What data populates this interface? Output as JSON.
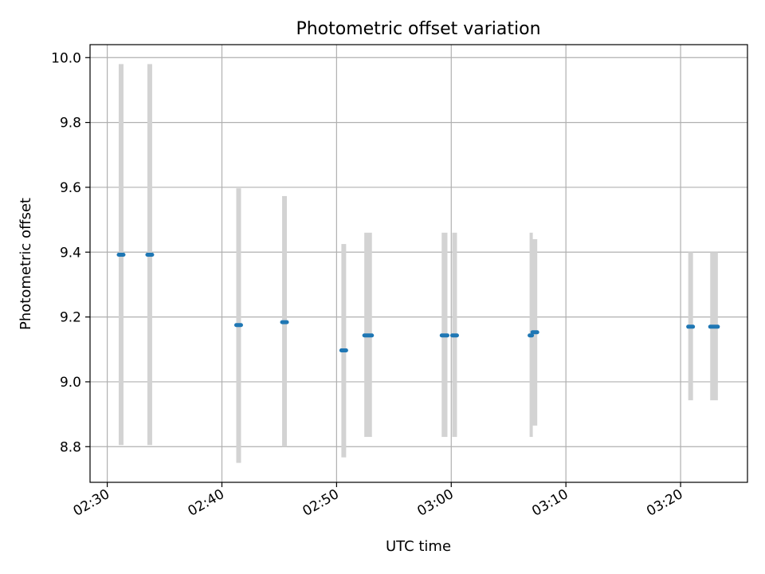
{
  "chart_data": {
    "type": "scatter",
    "title": "Photometric offset variation",
    "xlabel": "UTC time",
    "ylabel": "Photometric offset",
    "xlim": [
      "02:28:30",
      "03:25:50"
    ],
    "ylim": [
      8.69,
      10.04
    ],
    "grid": true,
    "x_ticks": [
      "02:30",
      "02:40",
      "02:50",
      "03:00",
      "03:10",
      "03:20"
    ],
    "y_ticks": [
      "8.8",
      "9.0",
      "9.2",
      "9.4",
      "9.6",
      "9.8",
      "10.0"
    ],
    "points_color": "#1f77b4",
    "range_color": "#d3d3d3",
    "groups": [
      {
        "time_start": "02:31:00",
        "time_end": "02:31:25",
        "value": 9.392,
        "low": 8.805,
        "high": 9.98
      },
      {
        "time_start": "02:33:30",
        "time_end": "02:33:55",
        "value": 9.392,
        "low": 8.805,
        "high": 9.98
      },
      {
        "time_start": "02:41:15",
        "time_end": "02:41:40",
        "value": 9.175,
        "low": 8.75,
        "high": 9.597
      },
      {
        "time_start": "02:45:15",
        "time_end": "02:45:40",
        "value": 9.184,
        "low": 8.8,
        "high": 9.573
      },
      {
        "time_start": "02:50:25",
        "time_end": "02:50:50",
        "value": 9.097,
        "low": 8.767,
        "high": 9.425
      },
      {
        "time_start": "02:52:25",
        "time_end": "02:53:05",
        "value": 9.143,
        "low": 8.83,
        "high": 9.46
      },
      {
        "time_start": "02:59:10",
        "time_end": "02:59:40",
        "value": 9.143,
        "low": 8.83,
        "high": 9.46
      },
      {
        "time_start": "03:00:05",
        "time_end": "03:00:30",
        "value": 9.143,
        "low": 8.83,
        "high": 9.46
      },
      {
        "time_start": "03:06:50",
        "time_end": "03:06:55",
        "value": 9.143,
        "low": 8.83,
        "high": 9.46
      },
      {
        "time_start": "03:07:05",
        "time_end": "03:07:30",
        "value": 9.153,
        "low": 8.865,
        "high": 9.44
      },
      {
        "time_start": "03:20:40",
        "time_end": "03:21:05",
        "value": 9.17,
        "low": 8.943,
        "high": 9.4
      },
      {
        "time_start": "03:22:35",
        "time_end": "03:23:15",
        "value": 9.17,
        "low": 8.943,
        "high": 9.4
      }
    ]
  }
}
